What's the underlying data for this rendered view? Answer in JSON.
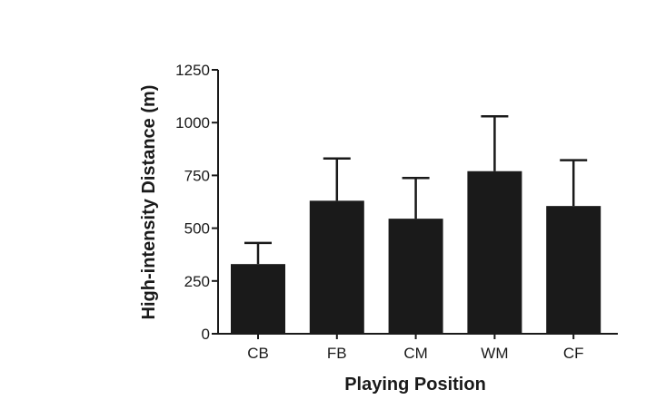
{
  "chart_data": {
    "type": "bar",
    "title": "",
    "xlabel": "Playing Position",
    "ylabel": "High-intensity Distance (m)",
    "categories": [
      "CB",
      "FB",
      "CM",
      "WM",
      "CF"
    ],
    "values": [
      330,
      630,
      545,
      770,
      605
    ],
    "error_upper": [
      430,
      830,
      738,
      1030,
      822
    ],
    "ylim": [
      0,
      1250
    ],
    "yticks": [
      0,
      250,
      500,
      750,
      1000,
      1250
    ],
    "grid": false,
    "legend": "none",
    "bar_color": "#1a1a1a",
    "axis_color": "#1a1a1a"
  }
}
